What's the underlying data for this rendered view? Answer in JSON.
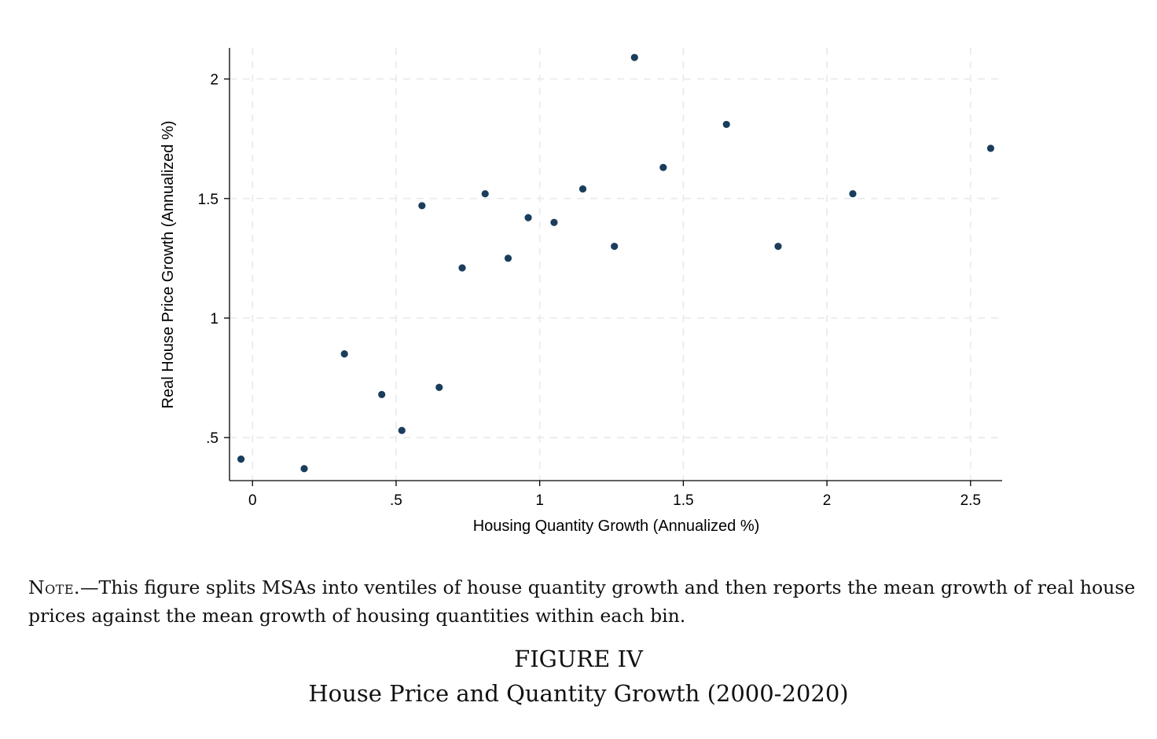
{
  "chart_data": {
    "type": "scatter",
    "xlabel": "Housing Quantity Growth (Annualized %)",
    "ylabel": "Real House Price Growth (Annualized %)",
    "xlim": [
      -0.08,
      2.61
    ],
    "ylim": [
      0.32,
      2.13
    ],
    "x_ticks": [
      0,
      0.5,
      1,
      1.5,
      2,
      2.5
    ],
    "x_tick_labels": [
      "0",
      ".5",
      "1",
      "1.5",
      "2",
      "2.5"
    ],
    "y_ticks": [
      0.5,
      1,
      1.5,
      2
    ],
    "y_tick_labels": [
      ".5",
      "1",
      "1.5",
      "2"
    ],
    "grid": true,
    "marker_color": "#1a3d5c",
    "points": [
      {
        "x": -0.04,
        "y": 0.41
      },
      {
        "x": 0.18,
        "y": 0.37
      },
      {
        "x": 0.32,
        "y": 0.85
      },
      {
        "x": 0.45,
        "y": 0.68
      },
      {
        "x": 0.52,
        "y": 0.53
      },
      {
        "x": 0.59,
        "y": 1.47
      },
      {
        "x": 0.65,
        "y": 0.71
      },
      {
        "x": 0.73,
        "y": 1.21
      },
      {
        "x": 0.81,
        "y": 1.52
      },
      {
        "x": 0.89,
        "y": 1.25
      },
      {
        "x": 0.96,
        "y": 1.42
      },
      {
        "x": 1.05,
        "y": 1.4
      },
      {
        "x": 1.15,
        "y": 1.54
      },
      {
        "x": 1.26,
        "y": 1.3
      },
      {
        "x": 1.33,
        "y": 2.09
      },
      {
        "x": 1.43,
        "y": 1.63
      },
      {
        "x": 1.65,
        "y": 1.81
      },
      {
        "x": 1.83,
        "y": 1.3
      },
      {
        "x": 2.09,
        "y": 1.52
      },
      {
        "x": 2.57,
        "y": 1.71
      }
    ]
  },
  "note": {
    "label": "Note.",
    "text": "—This figure splits MSAs into ventiles of house quantity growth and then reports the mean growth of real house prices against the mean growth of housing quantities within each bin."
  },
  "figure": {
    "number": "FIGURE IV",
    "title": "House Price and Quantity Growth (2000-2020)"
  }
}
